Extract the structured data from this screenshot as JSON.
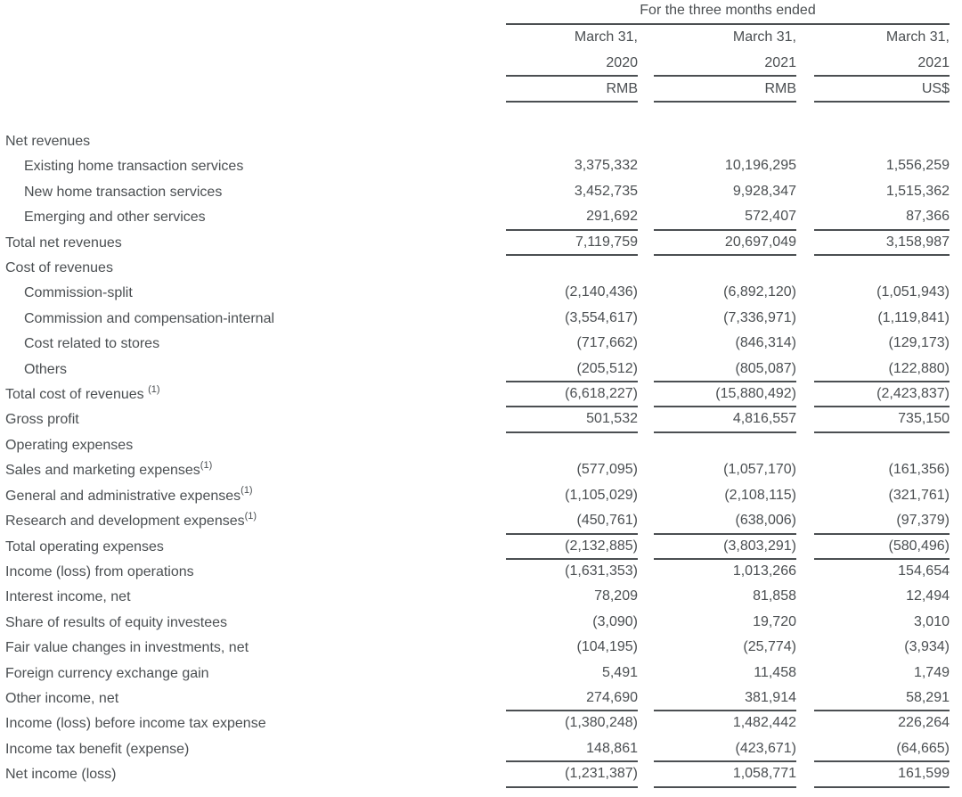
{
  "theme": {
    "text_color": "#4b4f52",
    "rule_color": "#4b4f52",
    "background_color": "#ffffff"
  },
  "table": {
    "header": {
      "title": "For the three months ended",
      "columns": [
        {
          "period": "March 31,",
          "year": "2020",
          "currency": "RMB"
        },
        {
          "period": "March 31,",
          "year": "2021",
          "currency": "RMB"
        },
        {
          "period": "March 31,",
          "year": "2021",
          "currency": "US$"
        }
      ]
    },
    "rows": [
      {
        "label": "Net revenues",
        "section": true,
        "values": null
      },
      {
        "label": "Existing home transaction services",
        "indent": true,
        "values": [
          "3,375,332",
          "10,196,295",
          "1,556,259"
        ]
      },
      {
        "label": "New home transaction services",
        "indent": true,
        "values": [
          "3,452,735",
          "9,928,347",
          "1,515,362"
        ]
      },
      {
        "label": "Emerging and other services",
        "indent": true,
        "values": [
          "291,692",
          "572,407",
          "87,366"
        ],
        "underline": true
      },
      {
        "label": "Total net revenues",
        "values": [
          "7,119,759",
          "20,697,049",
          "3,158,987"
        ],
        "underline": true
      },
      {
        "label": "Cost of revenues",
        "section": true,
        "values": null
      },
      {
        "label": "Commission-split",
        "indent": true,
        "values": [
          "(2,140,436)",
          "(6,892,120)",
          "(1,051,943)"
        ]
      },
      {
        "label": "Commission and compensation-internal",
        "indent": true,
        "values": [
          "(3,554,617)",
          "(7,336,971)",
          "(1,119,841)"
        ]
      },
      {
        "label": "Cost related to stores",
        "indent": true,
        "values": [
          "(717,662)",
          "(846,314)",
          "(129,173)"
        ]
      },
      {
        "label": "Others",
        "indent": true,
        "values": [
          "(205,512)",
          "(805,087)",
          "(122,880)"
        ],
        "underline": true
      },
      {
        "label": "Total cost of revenues",
        "sup": "(1)",
        "sup_space": true,
        "values": [
          "(6,618,227)",
          "(15,880,492)",
          "(2,423,837)"
        ],
        "underline": true
      },
      {
        "label": "Gross profit",
        "values": [
          "501,532",
          "4,816,557",
          "735,150"
        ],
        "underline": true
      },
      {
        "label": "Operating expenses",
        "section": true,
        "values": null
      },
      {
        "label": "Sales and marketing expenses",
        "sup": "(1)",
        "values": [
          "(577,095)",
          "(1,057,170)",
          "(161,356)"
        ]
      },
      {
        "label": "General and administrative expenses",
        "sup": "(1)",
        "values": [
          "(1,105,029)",
          "(2,108,115)",
          "(321,761)"
        ]
      },
      {
        "label": "Research and development expenses",
        "sup": "(1)",
        "values": [
          "(450,761)",
          "(638,006)",
          "(97,379)"
        ],
        "underline": true
      },
      {
        "label": "Total operating expenses",
        "values": [
          "(2,132,885)",
          "(3,803,291)",
          "(580,496)"
        ],
        "underline": true
      },
      {
        "label": "Income (loss) from operations",
        "values": [
          "(1,631,353)",
          "1,013,266",
          "154,654"
        ]
      },
      {
        "label": "Interest income, net",
        "values": [
          "78,209",
          "81,858",
          "12,494"
        ]
      },
      {
        "label": "Share of results of equity investees",
        "values": [
          "(3,090)",
          "19,720",
          "3,010"
        ]
      },
      {
        "label": "Fair value changes in investments, net",
        "values": [
          "(104,195)",
          "(25,774)",
          "(3,934)"
        ]
      },
      {
        "label": "Foreign currency exchange gain",
        "values": [
          "5,491",
          "11,458",
          "1,749"
        ]
      },
      {
        "label": "Other income, net",
        "values": [
          "274,690",
          "381,914",
          "58,291"
        ],
        "underline": true
      },
      {
        "label": "Income (loss) before income tax expense",
        "values": [
          "(1,380,248)",
          "1,482,442",
          "226,264"
        ]
      },
      {
        "label": "Income tax benefit (expense)",
        "values": [
          "148,861",
          "(423,671)",
          "(64,665)"
        ],
        "underline": true
      },
      {
        "label": "Net income (loss)",
        "values": [
          "(1,231,387)",
          "1,058,771",
          "161,599"
        ],
        "underline": true
      }
    ]
  }
}
